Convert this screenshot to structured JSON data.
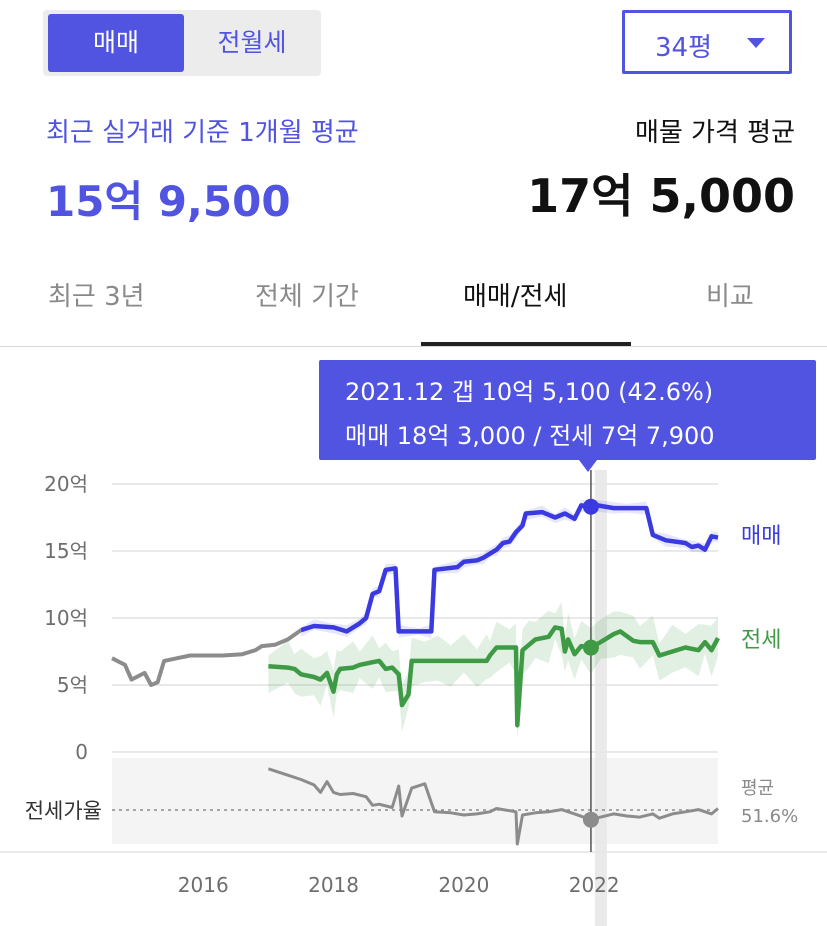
{
  "toggle": {
    "options": [
      "매매",
      "전월세"
    ],
    "selected": "매매"
  },
  "size_select": {
    "value": "34평"
  },
  "summary": {
    "recent_label": "최근 실거래 기준 1개월 평균",
    "recent_value": "15억 9,500",
    "listing_label": "매물 가격 평균",
    "listing_value": "17억 5,000"
  },
  "tabs": [
    {
      "label": "최근 3년",
      "active": false
    },
    {
      "label": "전체 기간",
      "active": false
    },
    {
      "label": "매매/전세",
      "active": true
    },
    {
      "label": "비교",
      "active": false
    }
  ],
  "tooltip": {
    "line1": "2021.12  갭 10억 5,100 (42.6%)",
    "line2": "매매 18억 3,000 / 전세 7억 7,900"
  },
  "colors": {
    "accent": "#5154e0",
    "sale": "#3b3ae0",
    "jeonse": "#3f9a45",
    "historical": "#8c8c8c",
    "ratio": "#8c8c8c"
  },
  "chart_data": {
    "type": "line",
    "y_unit": "억",
    "ylim": [
      0,
      20
    ],
    "yticks": [
      "20억",
      "15억",
      "10억",
      "5억",
      "0"
    ],
    "xticks": [
      "2016",
      "2018",
      "2020",
      "2022"
    ],
    "xlim": [
      2014.6,
      2023.9
    ],
    "highlight": {
      "date": "2021.12",
      "x": 2021.95,
      "sale": 18.3,
      "jeonse": 7.79
    },
    "series": [
      {
        "name": "매매",
        "points": [
          [
            2017.5,
            9.1
          ],
          [
            2017.7,
            9.4
          ],
          [
            2018.0,
            9.3
          ],
          [
            2018.2,
            9.0
          ],
          [
            2018.4,
            9.6
          ],
          [
            2018.5,
            10.0
          ],
          [
            2018.6,
            11.8
          ],
          [
            2018.7,
            12.0
          ],
          [
            2018.8,
            13.6
          ],
          [
            2018.95,
            13.7
          ],
          [
            2019.0,
            9.0
          ],
          [
            2019.3,
            9.0
          ],
          [
            2019.5,
            9.0
          ],
          [
            2019.55,
            13.6
          ],
          [
            2019.9,
            13.8
          ],
          [
            2020.0,
            14.2
          ],
          [
            2020.2,
            14.3
          ],
          [
            2020.3,
            14.5
          ],
          [
            2020.4,
            14.8
          ],
          [
            2020.5,
            15.1
          ],
          [
            2020.6,
            15.6
          ],
          [
            2020.7,
            15.7
          ],
          [
            2020.8,
            16.4
          ],
          [
            2020.9,
            16.9
          ],
          [
            2020.95,
            17.8
          ],
          [
            2021.2,
            17.9
          ],
          [
            2021.4,
            17.5
          ],
          [
            2021.55,
            17.8
          ],
          [
            2021.7,
            17.4
          ],
          [
            2021.8,
            18.4
          ],
          [
            2021.95,
            18.3
          ],
          [
            2022.05,
            18.4
          ],
          [
            2022.3,
            18.2
          ],
          [
            2022.5,
            18.2
          ],
          [
            2022.8,
            18.2
          ],
          [
            2022.9,
            16.2
          ],
          [
            2023.1,
            15.8
          ],
          [
            2023.4,
            15.6
          ],
          [
            2023.5,
            15.3
          ],
          [
            2023.6,
            15.4
          ],
          [
            2023.7,
            15.1
          ],
          [
            2023.8,
            16.1
          ],
          [
            2023.9,
            16.0
          ]
        ]
      },
      {
        "name": "전세",
        "points": [
          [
            2017.0,
            6.4
          ],
          [
            2017.3,
            6.3
          ],
          [
            2017.4,
            6.2
          ],
          [
            2017.5,
            5.8
          ],
          [
            2017.7,
            5.6
          ],
          [
            2017.8,
            5.4
          ],
          [
            2017.9,
            5.9
          ],
          [
            2018.0,
            4.5
          ],
          [
            2018.05,
            5.8
          ],
          [
            2018.1,
            6.2
          ],
          [
            2018.3,
            6.3
          ],
          [
            2018.4,
            6.5
          ],
          [
            2018.6,
            6.7
          ],
          [
            2018.7,
            6.8
          ],
          [
            2018.8,
            6.2
          ],
          [
            2018.9,
            6.3
          ],
          [
            2019.0,
            5.8
          ],
          [
            2019.05,
            3.5
          ],
          [
            2019.15,
            4.3
          ],
          [
            2019.2,
            6.8
          ],
          [
            2019.4,
            6.8
          ],
          [
            2019.6,
            6.8
          ],
          [
            2019.8,
            6.8
          ],
          [
            2020.0,
            6.8
          ],
          [
            2020.2,
            6.8
          ],
          [
            2020.35,
            6.8
          ],
          [
            2020.4,
            7.2
          ],
          [
            2020.5,
            7.8
          ],
          [
            2020.7,
            7.8
          ],
          [
            2020.8,
            7.8
          ],
          [
            2020.82,
            2.0
          ],
          [
            2020.9,
            7.6
          ],
          [
            2021.0,
            8.0
          ],
          [
            2021.1,
            8.4
          ],
          [
            2021.3,
            8.6
          ],
          [
            2021.4,
            9.3
          ],
          [
            2021.5,
            9.2
          ],
          [
            2021.55,
            7.5
          ],
          [
            2021.6,
            8.4
          ],
          [
            2021.7,
            7.3
          ],
          [
            2021.8,
            7.9
          ],
          [
            2021.95,
            7.79
          ],
          [
            2022.1,
            8.2
          ],
          [
            2022.3,
            8.8
          ],
          [
            2022.4,
            9.0
          ],
          [
            2022.6,
            8.3
          ],
          [
            2022.7,
            8.2
          ],
          [
            2022.9,
            8.2
          ],
          [
            2023.0,
            7.2
          ],
          [
            2023.2,
            7.5
          ],
          [
            2023.4,
            7.8
          ],
          [
            2023.6,
            7.6
          ],
          [
            2023.7,
            8.2
          ],
          [
            2023.8,
            7.6
          ],
          [
            2023.9,
            8.5
          ]
        ]
      },
      {
        "name": "",
        "points": [
          [
            2014.6,
            7.0
          ],
          [
            2014.8,
            6.5
          ],
          [
            2014.9,
            5.4
          ],
          [
            2015.1,
            5.9
          ],
          [
            2015.2,
            5.0
          ],
          [
            2015.3,
            5.2
          ],
          [
            2015.4,
            6.8
          ],
          [
            2015.6,
            7.0
          ],
          [
            2015.8,
            7.2
          ],
          [
            2016.0,
            7.2
          ],
          [
            2016.3,
            7.2
          ],
          [
            2016.6,
            7.3
          ],
          [
            2016.8,
            7.6
          ],
          [
            2016.9,
            7.9
          ],
          [
            2017.1,
            8.0
          ],
          [
            2017.3,
            8.4
          ],
          [
            2017.5,
            9.1
          ]
        ]
      }
    ],
    "ratio": {
      "label": "전세가율",
      "average_label": "평균",
      "average_value": "51.6%",
      "average": 51.6,
      "ylim": [
        20,
        100
      ],
      "points": [
        [
          2017.0,
          90
        ],
        [
          2017.3,
          84
        ],
        [
          2017.5,
          80
        ],
        [
          2017.7,
          75
        ],
        [
          2017.8,
          68
        ],
        [
          2017.9,
          78
        ],
        [
          2018.0,
          68
        ],
        [
          2018.1,
          66
        ],
        [
          2018.3,
          67
        ],
        [
          2018.5,
          64
        ],
        [
          2018.6,
          56
        ],
        [
          2018.7,
          57
        ],
        [
          2018.9,
          54
        ],
        [
          2019.0,
          74
        ],
        [
          2019.05,
          46
        ],
        [
          2019.2,
          72
        ],
        [
          2019.4,
          76
        ],
        [
          2019.55,
          50
        ],
        [
          2019.8,
          49
        ],
        [
          2020.0,
          47
        ],
        [
          2020.2,
          48
        ],
        [
          2020.4,
          50
        ],
        [
          2020.5,
          53
        ],
        [
          2020.7,
          51
        ],
        [
          2020.8,
          50
        ],
        [
          2020.82,
          20
        ],
        [
          2020.9,
          47
        ],
        [
          2021.1,
          49
        ],
        [
          2021.3,
          50
        ],
        [
          2021.5,
          52
        ],
        [
          2021.7,
          48
        ],
        [
          2021.95,
          42.6
        ],
        [
          2022.1,
          45
        ],
        [
          2022.3,
          48
        ],
        [
          2022.5,
          46
        ],
        [
          2022.7,
          45
        ],
        [
          2022.9,
          48
        ],
        [
          2023.0,
          44
        ],
        [
          2023.2,
          48
        ],
        [
          2023.4,
          50
        ],
        [
          2023.6,
          52
        ],
        [
          2023.8,
          48
        ],
        [
          2023.9,
          53
        ]
      ]
    }
  }
}
